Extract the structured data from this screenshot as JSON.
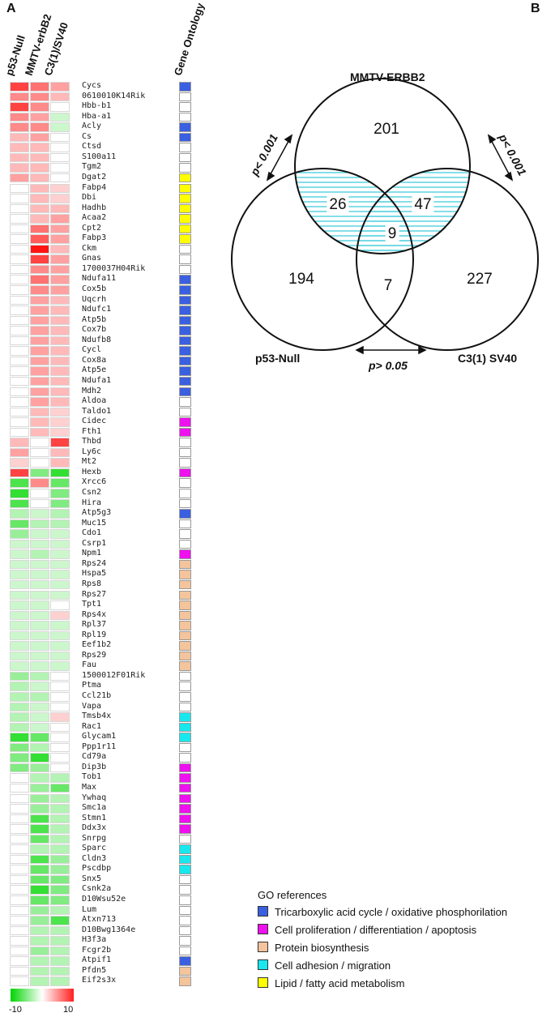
{
  "panels": {
    "a": "A",
    "b": "B"
  },
  "columns": [
    "p53-Null",
    "MMTV-erbB2",
    "C3(1)/SV40"
  ],
  "go_header": "Gene Ontology",
  "colors": {
    "tca": "#3a5fe0",
    "prolif": "#ee10ee",
    "protein": "#f4c49c",
    "adhesion": "#18e8ee",
    "lipid": "#ffff00"
  },
  "genes": [
    {
      "name": "Cycs",
      "v": [
        8,
        6,
        4
      ],
      "go": "tca"
    },
    {
      "name": "0610010K14Rik",
      "v": [
        5,
        5,
        3
      ],
      "go": ""
    },
    {
      "name": "Hbb-b1",
      "v": [
        8,
        5,
        0
      ],
      "go": ""
    },
    {
      "name": "Hba-a1",
      "v": [
        5,
        4,
        -2
      ],
      "go": ""
    },
    {
      "name": "Acly",
      "v": [
        5,
        5,
        -2
      ],
      "go": "tca"
    },
    {
      "name": "Cs",
      "v": [
        3,
        4,
        0
      ],
      "go": "tca"
    },
    {
      "name": "Ctsd",
      "v": [
        3,
        3,
        0
      ],
      "go": ""
    },
    {
      "name": "S100a11",
      "v": [
        3,
        3,
        0
      ],
      "go": ""
    },
    {
      "name": "Tgm2",
      "v": [
        3,
        3,
        0
      ],
      "go": ""
    },
    {
      "name": "Dgat2",
      "v": [
        4,
        3,
        0
      ],
      "go": "lipid"
    },
    {
      "name": "Fabp4",
      "v": [
        0,
        3,
        2
      ],
      "go": "lipid"
    },
    {
      "name": "Dbi",
      "v": [
        0,
        3,
        2
      ],
      "go": "lipid"
    },
    {
      "name": "Hadhb",
      "v": [
        0,
        3,
        3
      ],
      "go": "lipid"
    },
    {
      "name": "Acaa2",
      "v": [
        0,
        3,
        4
      ],
      "go": "lipid"
    },
    {
      "name": "Cpt2",
      "v": [
        0,
        6,
        4
      ],
      "go": "lipid"
    },
    {
      "name": "Fabp3",
      "v": [
        0,
        7,
        4
      ],
      "go": "lipid"
    },
    {
      "name": "Ckm",
      "v": [
        0,
        10,
        3
      ],
      "go": ""
    },
    {
      "name": "Gnas",
      "v": [
        0,
        8,
        4
      ],
      "go": ""
    },
    {
      "name": "1700037H04Rik",
      "v": [
        0,
        5,
        4
      ],
      "go": ""
    },
    {
      "name": "Ndufa11",
      "v": [
        0,
        6,
        4
      ],
      "go": "tca"
    },
    {
      "name": "Cox5b",
      "v": [
        0,
        5,
        4
      ],
      "go": "tca"
    },
    {
      "name": "Uqcrh",
      "v": [
        0,
        4,
        3
      ],
      "go": "tca"
    },
    {
      "name": "Ndufc1",
      "v": [
        0,
        4,
        3
      ],
      "go": "tca"
    },
    {
      "name": "Atp5b",
      "v": [
        0,
        4,
        3
      ],
      "go": "tca"
    },
    {
      "name": "Cox7b",
      "v": [
        0,
        4,
        3
      ],
      "go": "tca"
    },
    {
      "name": "Ndufb8",
      "v": [
        0,
        4,
        3
      ],
      "go": "tca"
    },
    {
      "name": "Cycl",
      "v": [
        0,
        4,
        3
      ],
      "go": "tca"
    },
    {
      "name": "Cox8a",
      "v": [
        0,
        4,
        3
      ],
      "go": "tca"
    },
    {
      "name": "Atp5e",
      "v": [
        0,
        4,
        3
      ],
      "go": "tca"
    },
    {
      "name": "Ndufa1",
      "v": [
        0,
        4,
        3
      ],
      "go": "tca"
    },
    {
      "name": "Mdh2",
      "v": [
        0,
        4,
        3
      ],
      "go": "tca"
    },
    {
      "name": "Aldoa",
      "v": [
        0,
        4,
        3
      ],
      "go": ""
    },
    {
      "name": "Taldo1",
      "v": [
        0,
        3,
        2
      ],
      "go": ""
    },
    {
      "name": "Cidec",
      "v": [
        0,
        3,
        2
      ],
      "go": "prolif"
    },
    {
      "name": "Fth1",
      "v": [
        0,
        3,
        2
      ],
      "go": "prolif"
    },
    {
      "name": "Thbd",
      "v": [
        3,
        0,
        8
      ],
      "go": ""
    },
    {
      "name": "Ly6c",
      "v": [
        4,
        0,
        3
      ],
      "go": ""
    },
    {
      "name": "Mt2",
      "v": [
        2,
        0,
        3
      ],
      "go": ""
    },
    {
      "name": "Hexb",
      "v": [
        8,
        -5,
        -8
      ],
      "go": "prolif"
    },
    {
      "name": "Xrcc6",
      "v": [
        -7,
        5,
        -6
      ],
      "go": ""
    },
    {
      "name": "Csn2",
      "v": [
        -8,
        0,
        -5
      ],
      "go": ""
    },
    {
      "name": "Hira",
      "v": [
        -7,
        0,
        -5
      ],
      "go": ""
    },
    {
      "name": "Atp5g3",
      "v": [
        -3,
        -2,
        -3
      ],
      "go": "tca"
    },
    {
      "name": "Muc15",
      "v": [
        -6,
        -3,
        -3
      ],
      "go": ""
    },
    {
      "name": "Cdo1",
      "v": [
        -4,
        -2,
        -2
      ],
      "go": ""
    },
    {
      "name": "Csrp1",
      "v": [
        -2,
        -2,
        -2
      ],
      "go": ""
    },
    {
      "name": "Npm1",
      "v": [
        -2,
        -3,
        -2
      ],
      "go": "prolif"
    },
    {
      "name": "Rps24",
      "v": [
        -2,
        -2,
        -2
      ],
      "go": "protein"
    },
    {
      "name": "Hspa5",
      "v": [
        -2,
        -2,
        -2
      ],
      "go": "protein"
    },
    {
      "name": "Rps8",
      "v": [
        -2,
        -2,
        -2
      ],
      "go": "protein"
    },
    {
      "name": "Rps27",
      "v": [
        -2,
        -2,
        -2
      ],
      "go": "protein"
    },
    {
      "name": "Tpt1",
      "v": [
        -2,
        -2,
        0
      ],
      "go": "protein"
    },
    {
      "name": "Rps4x",
      "v": [
        -2,
        -2,
        2
      ],
      "go": "protein"
    },
    {
      "name": "Rpl37",
      "v": [
        -2,
        -2,
        -2
      ],
      "go": "protein"
    },
    {
      "name": "Rpl19",
      "v": [
        -2,
        -2,
        -2
      ],
      "go": "protein"
    },
    {
      "name": "Eef1b2",
      "v": [
        -2,
        -2,
        -2
      ],
      "go": "protein"
    },
    {
      "name": "Rps29",
      "v": [
        -2,
        -2,
        -2
      ],
      "go": "protein"
    },
    {
      "name": "Fau",
      "v": [
        -2,
        -2,
        -2
      ],
      "go": "protein"
    },
    {
      "name": "1500012F01Rik",
      "v": [
        -4,
        -3,
        0
      ],
      "go": ""
    },
    {
      "name": "Ptma",
      "v": [
        -3,
        -2,
        0
      ],
      "go": ""
    },
    {
      "name": "Ccl21b",
      "v": [
        -3,
        -3,
        0
      ],
      "go": ""
    },
    {
      "name": "Vapa",
      "v": [
        -3,
        -2,
        0
      ],
      "go": ""
    },
    {
      "name": "Tmsb4x",
      "v": [
        -3,
        -2,
        2
      ],
      "go": "adhesion"
    },
    {
      "name": "Rac1",
      "v": [
        -3,
        -2,
        0
      ],
      "go": "adhesion"
    },
    {
      "name": "Glycam1",
      "v": [
        -8,
        -6,
        0
      ],
      "go": "adhesion"
    },
    {
      "name": "Ppp1r11",
      "v": [
        -5,
        -3,
        0
      ],
      "go": ""
    },
    {
      "name": "Cd79a",
      "v": [
        -5,
        -8,
        0
      ],
      "go": ""
    },
    {
      "name": "Dip3b",
      "v": [
        -5,
        -4,
        0
      ],
      "go": "prolif"
    },
    {
      "name": "Tob1",
      "v": [
        0,
        -3,
        -3
      ],
      "go": "prolif"
    },
    {
      "name": "Max",
      "v": [
        0,
        -4,
        -6
      ],
      "go": "prolif"
    },
    {
      "name": "Ywhaq",
      "v": [
        0,
        -4,
        -3
      ],
      "go": "prolif"
    },
    {
      "name": "Smc1a",
      "v": [
        0,
        -4,
        -3
      ],
      "go": "prolif"
    },
    {
      "name": "Stmn1",
      "v": [
        0,
        -7,
        -3
      ],
      "go": "prolif"
    },
    {
      "name": "Ddx3x",
      "v": [
        0,
        -7,
        -3
      ],
      "go": "prolif"
    },
    {
      "name": "Snrpg",
      "v": [
        0,
        -6,
        -3
      ],
      "go": ""
    },
    {
      "name": "Sparc",
      "v": [
        0,
        -3,
        -3
      ],
      "go": "adhesion"
    },
    {
      "name": "Cldn3",
      "v": [
        0,
        -7,
        -4
      ],
      "go": "adhesion"
    },
    {
      "name": "Pscdbp",
      "v": [
        0,
        -6,
        -4
      ],
      "go": "adhesion"
    },
    {
      "name": "Snx5",
      "v": [
        0,
        -6,
        -5
      ],
      "go": ""
    },
    {
      "name": "Csnk2a",
      "v": [
        0,
        -8,
        -5
      ],
      "go": ""
    },
    {
      "name": "D10Wsu52e",
      "v": [
        0,
        -6,
        -5
      ],
      "go": ""
    },
    {
      "name": "Lum",
      "v": [
        0,
        -4,
        -3
      ],
      "go": ""
    },
    {
      "name": "Atxn713",
      "v": [
        0,
        -4,
        -7
      ],
      "go": ""
    },
    {
      "name": "D10Bwg1364e",
      "v": [
        0,
        -3,
        -3
      ],
      "go": ""
    },
    {
      "name": "H3f3a",
      "v": [
        0,
        -3,
        -3
      ],
      "go": ""
    },
    {
      "name": "Fcgr2b",
      "v": [
        0,
        -4,
        -3
      ],
      "go": ""
    },
    {
      "name": "Atpif1",
      "v": [
        0,
        -3,
        -3
      ],
      "go": "tca"
    },
    {
      "name": "Pfdn5",
      "v": [
        0,
        -3,
        -3
      ],
      "go": "protein"
    },
    {
      "name": "Eif2s3x",
      "v": [
        0,
        -3,
        -3
      ],
      "go": "protein"
    }
  ],
  "scale": {
    "min": "-10",
    "max": "10"
  },
  "venn": {
    "labels": {
      "top": "MMTV-ERBB2",
      "left": "p53-Null",
      "right": "C3(1) SV40"
    },
    "counts": {
      "top_only": "201",
      "left_only": "194",
      "right_only": "227",
      "top_left": "26",
      "top_right": "47",
      "left_right": "7",
      "all": "9"
    },
    "pvalues": {
      "top_left": "p< 0.001",
      "top_right": "p< 0.001",
      "left_right": "p> 0.05"
    }
  },
  "legend": {
    "title": "GO references",
    "items": [
      {
        "key": "tca",
        "label": "Tricarboxylic acid cycle / oxidative phosphorilation"
      },
      {
        "key": "prolif",
        "label": "Cell proliferation / differentiation / apoptosis"
      },
      {
        "key": "protein",
        "label": "Protein biosynthesis"
      },
      {
        "key": "adhesion",
        "label": "Cell adhesion / migration"
      },
      {
        "key": "lipid",
        "label": "Lipid / fatty acid metabolism"
      }
    ]
  }
}
